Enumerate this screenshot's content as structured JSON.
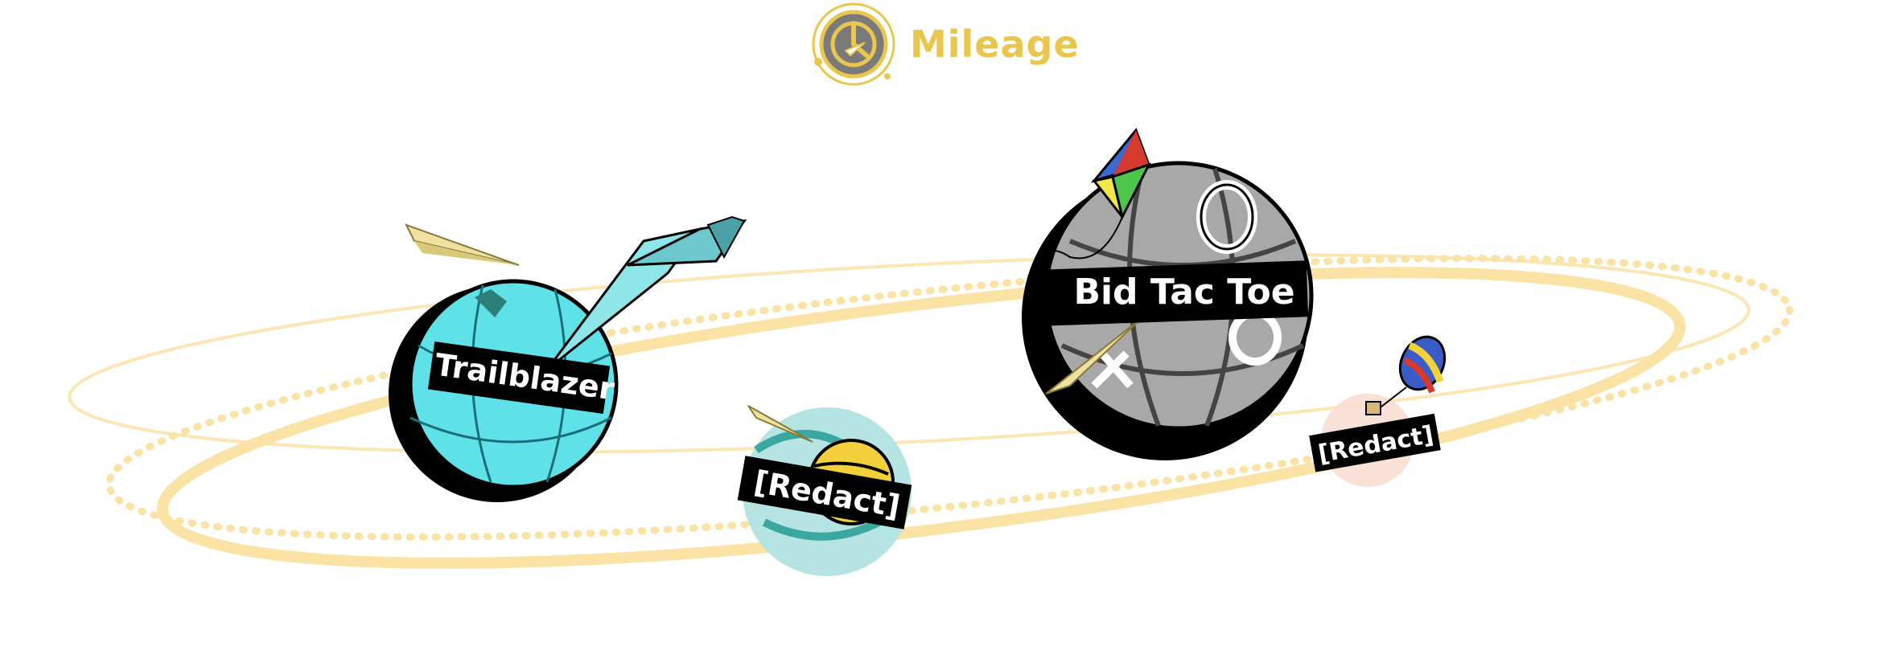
{
  "header": {
    "app_title": "Mileage",
    "logo_icon": "clock-plane-icon",
    "accent_color": "#e9c64e"
  },
  "orbit_colors": {
    "solid": "#fbe3a5",
    "thin": "#fbe6b4",
    "dotted": "#fbe3a5"
  },
  "planets": [
    {
      "label": "Trailblazer",
      "theme": "paper-plane-globe",
      "color": "#5fe1e8"
    },
    {
      "label": "[Redact]",
      "theme": "yellow-planet",
      "color": "#f4cf3c"
    },
    {
      "label": "Bid Tac Toe",
      "theme": "tic-tac-toe-kite",
      "color": "#a8a8a8"
    },
    {
      "label": "[Redact]",
      "theme": "hot-air-balloon",
      "color": "#f9dcd0"
    }
  ]
}
